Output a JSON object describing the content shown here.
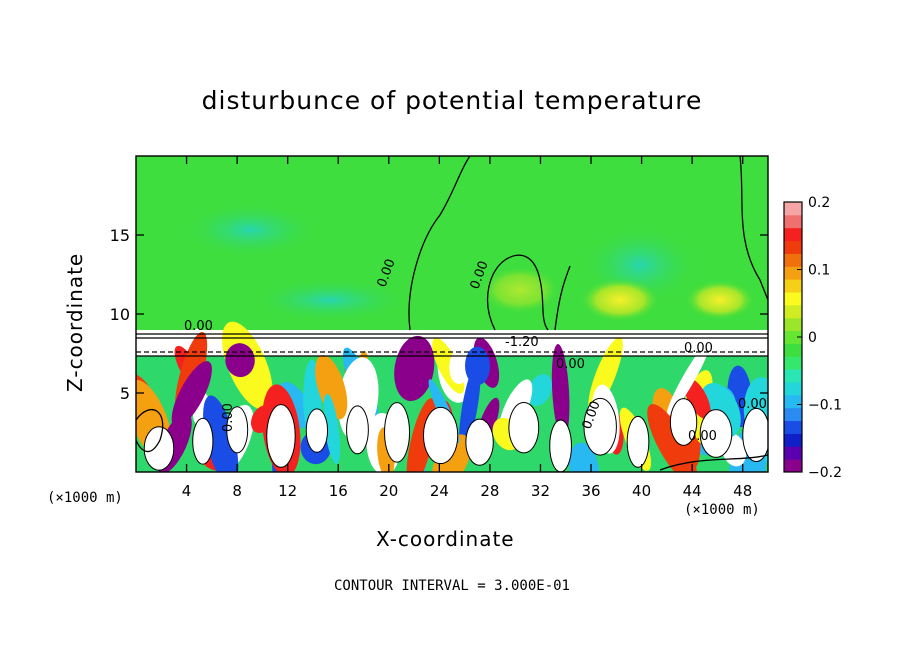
{
  "chart_data": {
    "type": "heatmap",
    "title": "disturbunce of potential temperature",
    "xlabel": "X-coordinate",
    "ylabel": "Z-coordinate",
    "x_unit_left": "(×1000 m)",
    "x_unit_right": "(×1000 m)",
    "footer": "CONTOUR INTERVAL = 3.000E-01",
    "xlim": [
      0,
      50
    ],
    "ylim": [
      0,
      20
    ],
    "x_ticks": [
      4,
      8,
      12,
      16,
      20,
      24,
      28,
      32,
      36,
      40,
      44,
      48
    ],
    "x_tick_labels": [
      "4",
      "8",
      "12",
      "16",
      "20",
      "24",
      "28",
      "32",
      "36",
      "40",
      "44",
      "48"
    ],
    "y_ticks": [
      5,
      10,
      15
    ],
    "y_tick_labels": [
      "5",
      "10",
      "15"
    ],
    "colorbar": {
      "min": -0.2,
      "max": 0.2,
      "ticks": [
        0.2,
        0.1,
        0,
        -0.1,
        -0.2
      ],
      "tick_labels": [
        "0.2",
        "0.1",
        "0",
        "−0.1",
        "−0.2"
      ],
      "colors": [
        "#8b008b",
        "#5a00b0",
        "#1020c8",
        "#1a4de6",
        "#2a8cf2",
        "#28b8f2",
        "#22d6dc",
        "#2ae6b4",
        "#33e86a",
        "#3ede3e",
        "#64e632",
        "#9be62a",
        "#d2ec22",
        "#fafa1e",
        "#f5d016",
        "#f5a010",
        "#f0700c",
        "#f03c0c",
        "#f52020",
        "#f07070",
        "#f5a5a5"
      ]
    },
    "contour_labels": [
      "0.00",
      "0.00",
      "0.00",
      "0.00",
      "0.00",
      "0.00",
      "0.00",
      "0.00",
      "0.00",
      "-1.20"
    ]
  }
}
